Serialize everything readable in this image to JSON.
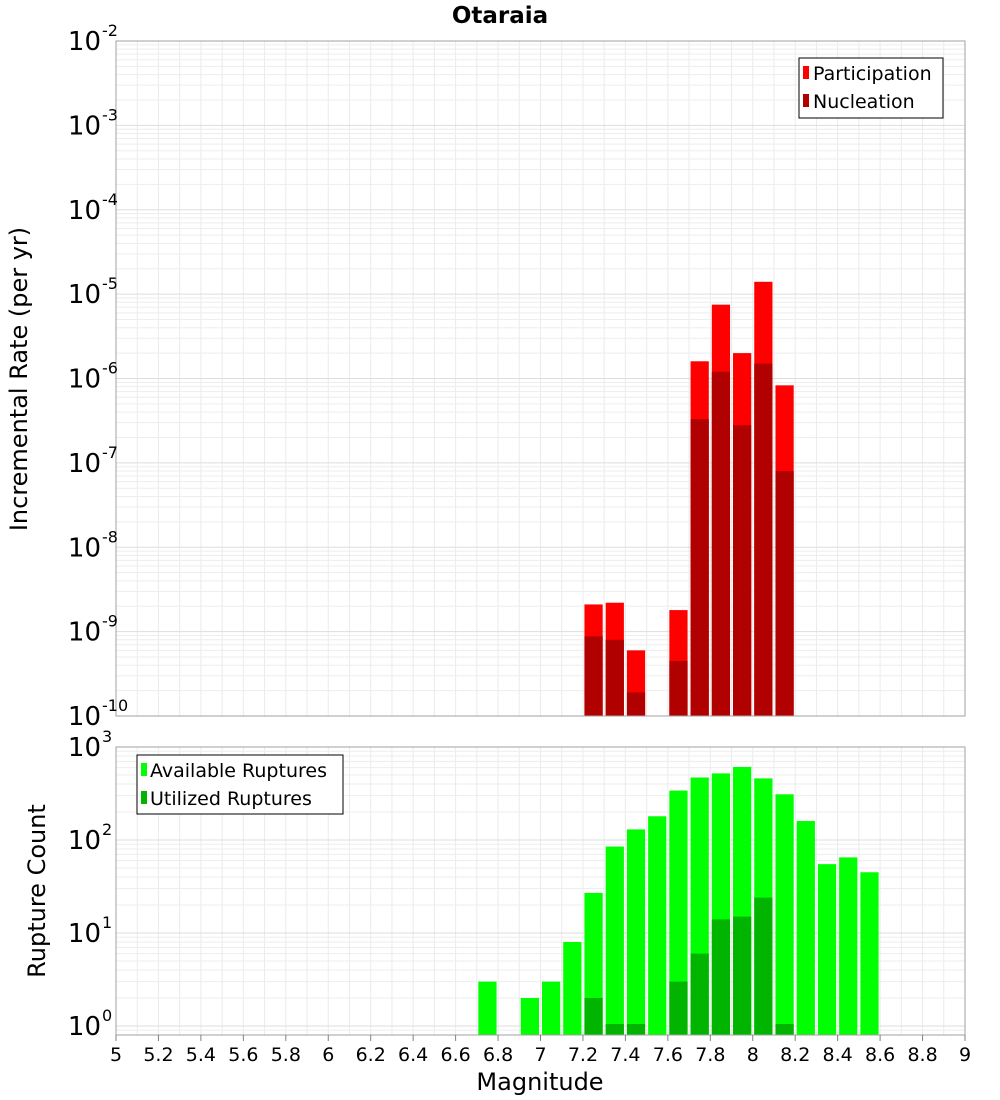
{
  "chart_data": [
    {
      "type": "bar",
      "title": "Otaraia",
      "xlabel": "",
      "ylabel": "Incremental Rate (per yr)",
      "yscale": "log",
      "ylim": [
        1e-10,
        0.01
      ],
      "xlim": [
        5,
        9
      ],
      "grid": true,
      "legend_position": "top-right",
      "y_ticks": [
        {
          "base": "10",
          "exp": "-10",
          "value": 1e-10
        },
        {
          "base": "10",
          "exp": "-9",
          "value": 1e-09
        },
        {
          "base": "10",
          "exp": "-8",
          "value": 1e-08
        },
        {
          "base": "10",
          "exp": "-7",
          "value": 1e-07
        },
        {
          "base": "10",
          "exp": "-6",
          "value": 1e-06
        },
        {
          "base": "10",
          "exp": "-5",
          "value": 1e-05
        },
        {
          "base": "10",
          "exp": "-4",
          "value": 0.0001
        },
        {
          "base": "10",
          "exp": "-3",
          "value": 0.001
        },
        {
          "base": "10",
          "exp": "-2",
          "value": 0.01
        }
      ],
      "bar_width": 0.1,
      "x": [
        7.25,
        7.35,
        7.45,
        7.65,
        7.75,
        7.85,
        7.95,
        8.05,
        8.15
      ],
      "series": [
        {
          "name": "Participation",
          "color": "#ff0000",
          "values": [
            2.1e-09,
            2.2e-09,
            6e-10,
            1.8e-09,
            1.6e-06,
            7.5e-06,
            2e-06,
            1.4e-05,
            8.3e-07
          ]
        },
        {
          "name": "Nucleation",
          "color": "#b00000",
          "values": [
            8.8e-10,
            8e-10,
            1.9e-10,
            4.5e-10,
            3.3e-07,
            1.2e-06,
            2.8e-07,
            1.5e-06,
            8e-08
          ]
        }
      ]
    },
    {
      "type": "bar",
      "title": "",
      "xlabel": "Magnitude",
      "ylabel": "Rupture Count",
      "yscale": "log",
      "ylim": [
        0.8,
        1000
      ],
      "xlim": [
        5,
        9
      ],
      "grid": true,
      "legend_position": "top-left",
      "y_ticks": [
        {
          "base": "10",
          "exp": "0",
          "value": 1
        },
        {
          "base": "10",
          "exp": "1",
          "value": 10
        },
        {
          "base": "10",
          "exp": "2",
          "value": 100
        },
        {
          "base": "10",
          "exp": "3",
          "value": 1000
        }
      ],
      "x_ticks": [
        "5",
        "5.2",
        "5.4",
        "5.6",
        "5.8",
        "6",
        "6.2",
        "6.4",
        "6.6",
        "6.8",
        "7",
        "7.2",
        "7.4",
        "7.6",
        "7.8",
        "8",
        "8.2",
        "8.4",
        "8.6",
        "8.8",
        "9"
      ],
      "bar_width": 0.1,
      "x": [
        6.75,
        6.95,
        7.05,
        7.15,
        7.25,
        7.35,
        7.45,
        7.55,
        7.65,
        7.75,
        7.85,
        7.95,
        8.05,
        8.15,
        8.25,
        8.35,
        8.45,
        8.55
      ],
      "series": [
        {
          "name": "Available Ruptures",
          "color": "#00ff00",
          "values": [
            3,
            2,
            3,
            8,
            27,
            85,
            130,
            180,
            340,
            470,
            520,
            610,
            460,
            310,
            160,
            55,
            65,
            45
          ]
        },
        {
          "name": "Utilized Ruptures",
          "color": "#00b400",
          "values": [
            0,
            0,
            0,
            0,
            2,
            1.05,
            1.05,
            0,
            3,
            6,
            14,
            15,
            24,
            1.05,
            0,
            0,
            0,
            0
          ]
        }
      ]
    }
  ]
}
